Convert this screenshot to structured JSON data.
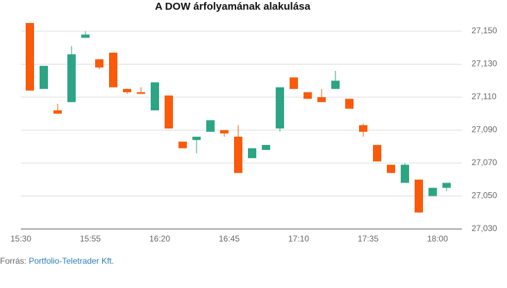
{
  "chart_data": {
    "type": "candlestick",
    "title": "A DOW árfolyamának alakulása",
    "categories": [
      "15:30",
      null,
      null,
      null,
      null,
      "15:55",
      null,
      null,
      null,
      null,
      "16:20",
      null,
      null,
      null,
      null,
      "16:45",
      null,
      null,
      null,
      null,
      "17:10",
      null,
      null,
      null,
      null,
      "17:35",
      null,
      null,
      null,
      null,
      "18:00"
    ],
    "open": [
      27155,
      27115,
      27102,
      27107,
      27146,
      27133,
      27137,
      27115,
      27113,
      27102,
      27111,
      27083,
      27084,
      27089,
      27090,
      27086,
      27073,
      27078,
      27091,
      27122,
      27113,
      27110,
      27115,
      27109,
      27093,
      27081,
      27069,
      27058,
      27060,
      27050,
      27055
    ],
    "high": [
      27155,
      27129,
      27106,
      27141,
      27150,
      27133,
      27137,
      27115,
      27116,
      27119,
      27111,
      27083,
      27086,
      27096,
      27090,
      27093,
      27079,
      27081,
      27116,
      27122,
      27113,
      27115,
      27126,
      27109,
      27094,
      27081,
      27069,
      27070,
      27060,
      27055,
      27058
    ],
    "low": [
      27114,
      27115,
      27100,
      27107,
      27146,
      27127,
      27116,
      27112,
      27112,
      27102,
      27091,
      27079,
      27076,
      27089,
      27086,
      27064,
      27073,
      27078,
      27089,
      27115,
      27109,
      27107,
      27115,
      27103,
      27086,
      27071,
      27064,
      27058,
      27040,
      27050,
      27053
    ],
    "close": [
      27114,
      27129,
      27100,
      27136,
      27148,
      27128,
      27116,
      27113,
      27112,
      27119,
      27091,
      27079,
      27086,
      27096,
      27088,
      27064,
      27079,
      27081,
      27116,
      27115,
      27109,
      27107,
      27120,
      27103,
      27089,
      27071,
      27064,
      27069,
      27040,
      27055,
      27058
    ],
    "up_color": "#2ba584",
    "down_color": "#fa5a0a",
    "ylim": [
      27030,
      27157
    ],
    "yticks": [
      {
        "value": 27030,
        "label": "27,030"
      },
      {
        "value": 27050,
        "label": "27,050"
      },
      {
        "value": 27070,
        "label": "27,070"
      },
      {
        "value": 27090,
        "label": "27,090"
      },
      {
        "value": 27110,
        "label": "27,110"
      },
      {
        "value": 27130,
        "label": "27,130"
      },
      {
        "value": 27150,
        "label": "27,150"
      }
    ],
    "grid": true,
    "source": {
      "label": "Forrás:",
      "text": "Portfolio-Teletrader Kft."
    }
  }
}
